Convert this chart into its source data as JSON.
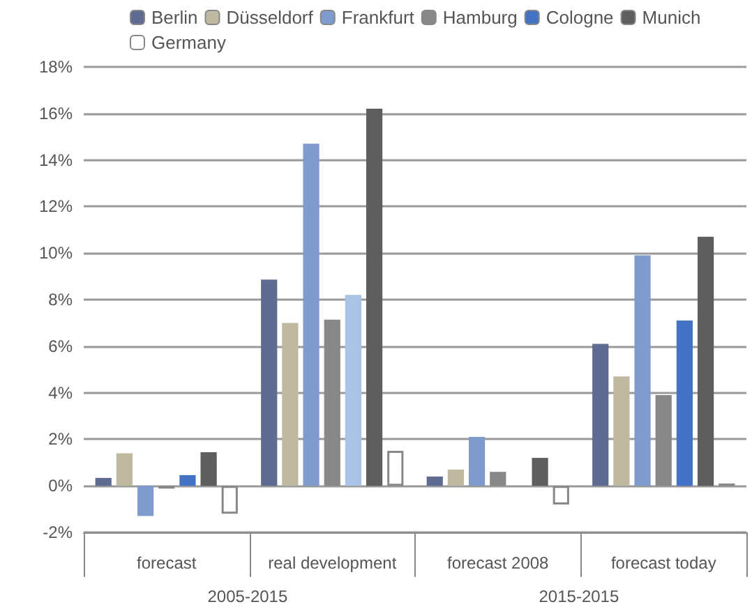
{
  "chart_data": {
    "type": "bar",
    "categories": [
      "forecast",
      "real development",
      "forecast 2008",
      "forecast today"
    ],
    "series": [
      {
        "name": "Berlin",
        "color": "#5f6b91",
        "values": [
          0.34,
          8.86,
          0.4,
          6.1
        ]
      },
      {
        "name": "Düsseldorf",
        "color": "#c0b9a2",
        "values": [
          1.4,
          7.0,
          0.7,
          4.7
        ]
      },
      {
        "name": "Frankfurt",
        "color": "#7f9acd",
        "values": [
          -1.3,
          14.7,
          2.1,
          9.9
        ]
      },
      {
        "name": "Hamburg",
        "color": "#888888",
        "values": [
          -0.12,
          7.14,
          0.6,
          3.9
        ]
      },
      {
        "name": "Cologne",
        "color": "#4472c4",
        "colors": [
          "#4472c4",
          "#a9c4e4",
          "#4472c4",
          "#4472c4"
        ],
        "values": [
          0.46,
          8.2,
          null,
          7.1
        ]
      },
      {
        "name": "Munich",
        "color": "#5e5e5e",
        "values": [
          1.44,
          16.2,
          1.2,
          10.7
        ]
      },
      {
        "name": "Germany",
        "color": "#ffffff",
        "values": [
          -1.2,
          1.5,
          -0.8,
          0.1
        ]
      }
    ],
    "annotations": [
      "2005-2015",
      "2015-2015"
    ],
    "ylim": [
      -2,
      18
    ],
    "yticks": [
      {
        "value": -2,
        "label": "-2%"
      },
      {
        "value": 0,
        "label": "0%"
      },
      {
        "value": 2,
        "label": "2%"
      },
      {
        "value": 4,
        "label": "4%"
      },
      {
        "value": 6,
        "label": "6%"
      },
      {
        "value": 8,
        "label": "8%"
      },
      {
        "value": 10,
        "label": "10%"
      },
      {
        "value": 12,
        "label": "12%"
      },
      {
        "value": 14,
        "label": "14%"
      },
      {
        "value": 16,
        "label": "16%"
      },
      {
        "value": 18,
        "label": "18%"
      }
    ],
    "grid": "y",
    "legend": "top"
  }
}
